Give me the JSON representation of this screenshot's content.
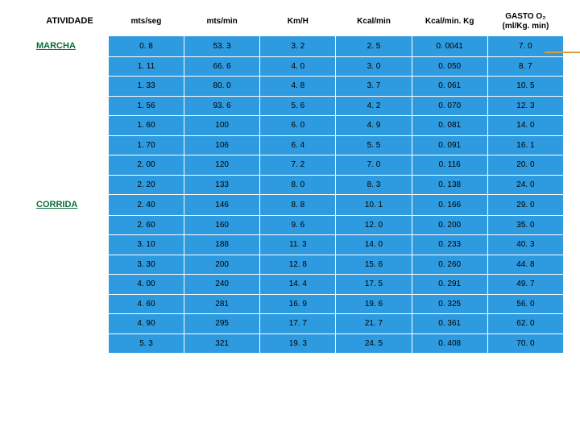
{
  "columns": [
    "ATIVIDADE",
    "mts/seg",
    "mts/min",
    "Km/H",
    "Kcal/min",
    "Kcal/min. Kg",
    "GASTO O₂ (ml/Kg. min)"
  ],
  "rows": [
    {
      "activity": "MARCHA",
      "v": [
        "0. 8",
        "53. 3",
        "3. 2",
        "2. 5",
        "0. 0041",
        "7. 0"
      ]
    },
    {
      "activity": "",
      "v": [
        "1. 11",
        "66. 6",
        "4. 0",
        "3. 0",
        "0. 050",
        "8. 7"
      ]
    },
    {
      "activity": "",
      "v": [
        "1. 33",
        "80. 0",
        "4. 8",
        "3. 7",
        "0. 061",
        "10. 5"
      ]
    },
    {
      "activity": "",
      "v": [
        "1. 56",
        "93. 6",
        "5. 6",
        "4. 2",
        "0. 070",
        "12. 3"
      ]
    },
    {
      "activity": "",
      "v": [
        "1. 60",
        "100",
        "6. 0",
        "4. 9",
        "0. 081",
        "14. 0"
      ]
    },
    {
      "activity": "",
      "v": [
        "1. 70",
        "106",
        "6. 4",
        "5. 5",
        "0. 091",
        "16. 1"
      ]
    },
    {
      "activity": "",
      "v": [
        "2. 00",
        "120",
        "7. 2",
        "7. 0",
        "0. 116",
        "20. 0"
      ]
    },
    {
      "activity": "",
      "v": [
        "2. 20",
        "133",
        "8. 0",
        "8. 3",
        "0. 138",
        "24. 0"
      ]
    },
    {
      "activity": "CORRIDA",
      "v": [
        "2. 40",
        "146",
        "8. 8",
        "10. 1",
        "0. 166",
        "29. 0"
      ]
    },
    {
      "activity": "",
      "v": [
        "2. 60",
        "160",
        "9. 6",
        "12. 0",
        "0. 200",
        "35. 0"
      ]
    },
    {
      "activity": "",
      "v": [
        "3. 10",
        "188",
        "11. 3",
        "14. 0",
        "0. 233",
        "40. 3"
      ]
    },
    {
      "activity": "",
      "v": [
        "3. 30",
        "200",
        "12. 8",
        "15. 6",
        "0. 260",
        "44. 8"
      ]
    },
    {
      "activity": "",
      "v": [
        "4. 00",
        "240",
        "14. 4",
        "17. 5",
        "0. 291",
        "49. 7"
      ]
    },
    {
      "activity": "",
      "v": [
        "4. 60",
        "281",
        "16. 9",
        "19. 6",
        "0. 325",
        "56. 0"
      ]
    },
    {
      "activity": "",
      "v": [
        "4. 90",
        "295",
        "17. 7",
        "21. 7",
        "0. 361",
        "62. 0"
      ]
    },
    {
      "activity": "",
      "v": [
        "5. 3",
        "321",
        "19. 3",
        "24. 5",
        "0. 408",
        "70. 0"
      ]
    }
  ],
  "style": {
    "row_bg": "#2e9adf",
    "header_bg": "#ffffff",
    "activity_color": "#0e6b3a",
    "border_color": "#ffffff",
    "font_size_cell": 10,
    "font_size_header": 10
  }
}
